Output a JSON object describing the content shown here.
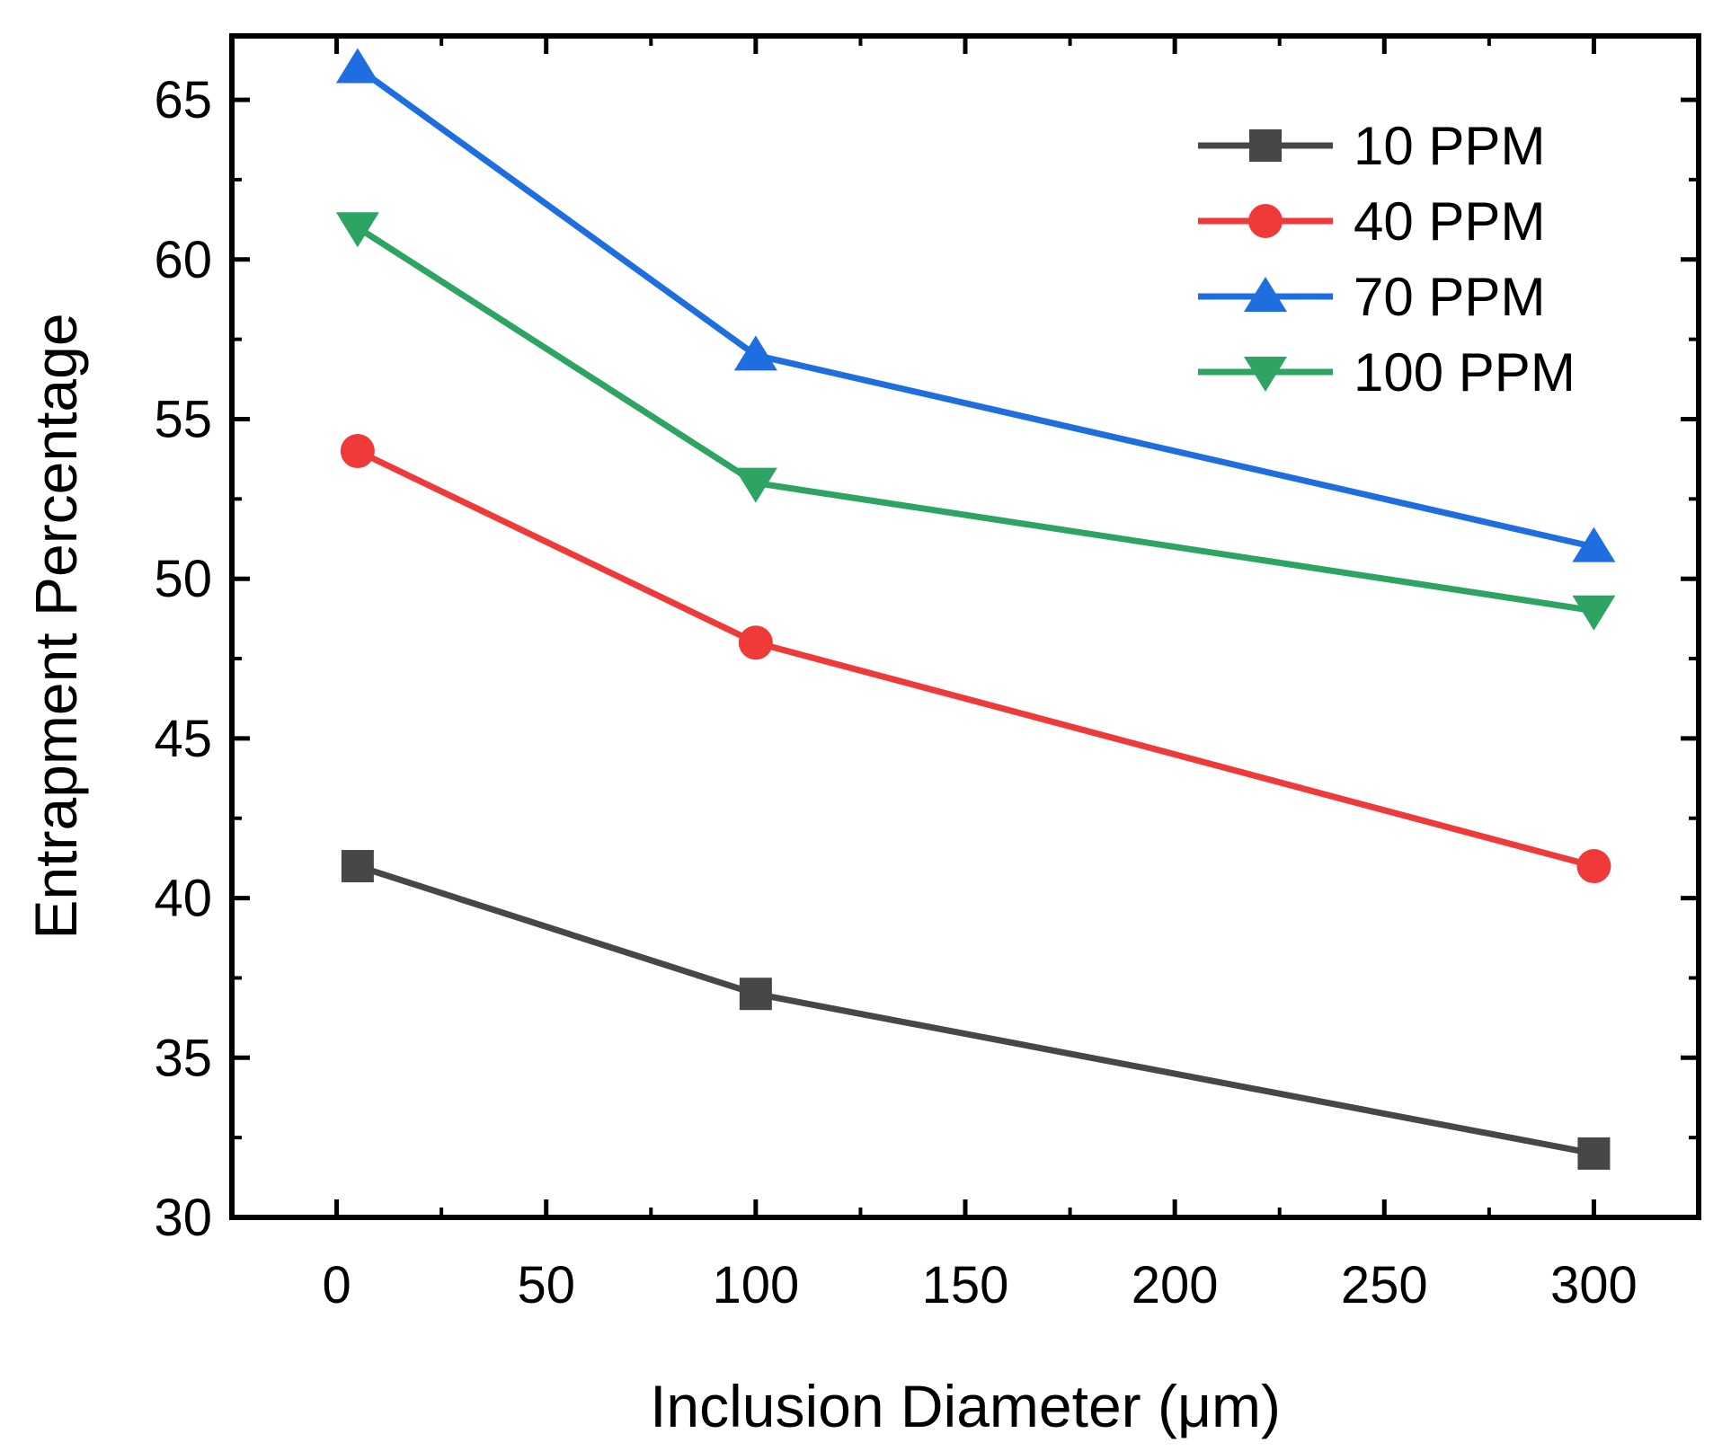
{
  "chart_data": {
    "type": "line",
    "title": "",
    "xlabel": "Inclusion Diameter (μm)",
    "ylabel": "Entrapment Percentage",
    "xlim": [
      -25,
      325
    ],
    "ylim": [
      30,
      67
    ],
    "xticks": [
      0,
      50,
      100,
      150,
      200,
      250,
      300
    ],
    "yticks": [
      30,
      35,
      40,
      45,
      50,
      55,
      60,
      65
    ],
    "x": [
      5,
      100,
      300
    ],
    "grid": false,
    "legend_position": "top-right",
    "series": [
      {
        "name": "10 PPM",
        "values": [
          41,
          37,
          32
        ],
        "color": "#474747",
        "marker": "square"
      },
      {
        "name": "40 PPM",
        "values": [
          54,
          48,
          41
        ],
        "color": "#f03a3a",
        "marker": "circle"
      },
      {
        "name": "70 PPM",
        "values": [
          66,
          57,
          51
        ],
        "color": "#1f6ee0",
        "marker": "triangle-up"
      },
      {
        "name": "100 PPM",
        "values": [
          61,
          53,
          49
        ],
        "color": "#2ea462",
        "marker": "triangle-down"
      }
    ]
  }
}
